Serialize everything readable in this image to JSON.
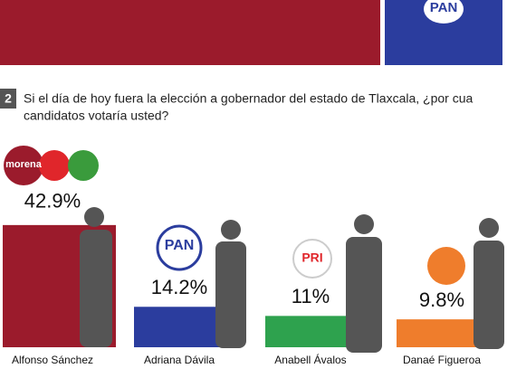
{
  "chart_data": {
    "type": "bar",
    "banner_logo": "PAN",
    "question_number": "2",
    "title_lines": [
      "Si el día de hoy fuera la elección a gobernador del estado de Tlaxcala, ¿por cua",
      "candidatos votaría usted?"
    ],
    "categories": [
      "Alfonso Sánchez",
      "Adriana Dávila",
      "Anabell Ávalos",
      "Danaé Figueroa"
    ],
    "values": [
      42.9,
      14.2,
      11,
      9.8
    ],
    "value_labels": [
      "42.9%",
      "14.2%",
      "11%",
      "9.8%"
    ],
    "colors": [
      "#9b1b2c",
      "#2b3d9e",
      "#2ea24e",
      "#ef7d2c"
    ],
    "logos": [
      "morena",
      "PAN",
      "PRI"
    ]
  }
}
